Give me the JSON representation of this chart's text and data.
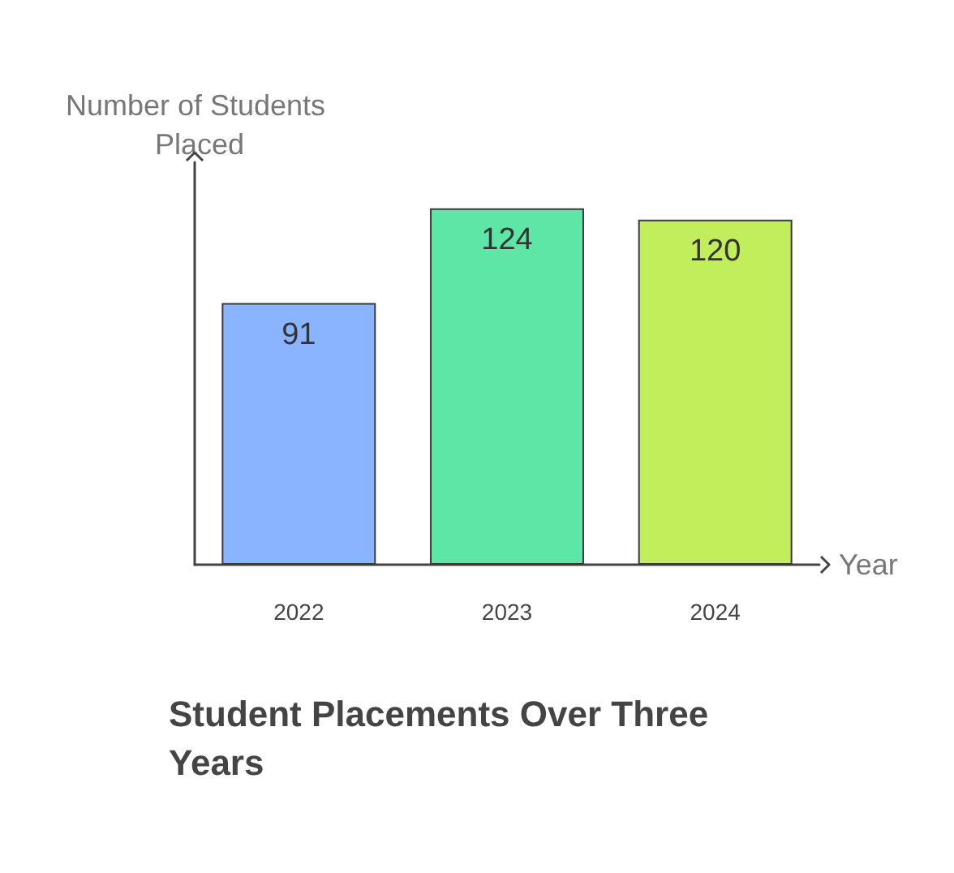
{
  "chart_data": {
    "type": "bar",
    "title": "Student Placements Over Three Years",
    "xlabel": "Year",
    "ylabel": "Number of Students Placed",
    "categories": [
      "2022",
      "2023",
      "2024"
    ],
    "values": [
      91,
      124,
      120
    ],
    "colors": [
      "#8ab4ff",
      "#5ee6a6",
      "#c3ee5c"
    ],
    "data_labels": true,
    "grid": false
  }
}
